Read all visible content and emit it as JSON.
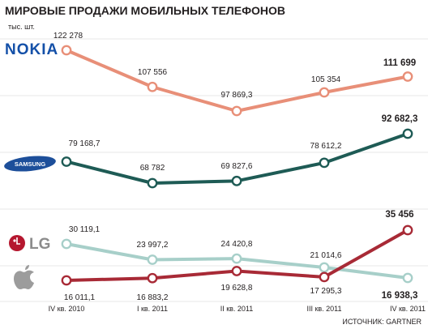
{
  "title": "МИРОВЫЕ ПРОДАЖИ МОБИЛЬНЫХ ТЕЛЕФОНОВ",
  "unit": "тыс. шт.",
  "source": "ИСТОЧНИК: GARTNER",
  "logos": {
    "nokia": "NOKIA",
    "samsung": "SAMSUNG",
    "lg": "LG"
  },
  "chart_data": {
    "type": "line",
    "categories": [
      "IV кв. 2010",
      "I кв. 2011",
      "II кв. 2011",
      "III кв. 2011",
      "IV кв. 2011"
    ],
    "series": [
      {
        "name": "NOKIA",
        "color": "#e88f78",
        "values": [
          122278,
          107556,
          97869.3,
          105354,
          111699
        ],
        "labels": [
          "122 278",
          "107 556",
          "97 869,3",
          "105 354",
          "111 699"
        ]
      },
      {
        "name": "SAMSUNG",
        "color": "#1e5b55",
        "values": [
          79168.7,
          68782,
          69827.6,
          78612.2,
          92682.3
        ],
        "labels": [
          "79 168,7",
          "68 782",
          "69 827,6",
          "78 612,2",
          "92 682,3"
        ]
      },
      {
        "name": "LG",
        "color": "#a7cfc9",
        "values": [
          30119.1,
          23997.2,
          24420.8,
          21014.6,
          16938.3
        ],
        "labels": [
          "30 119,1",
          "23 997,2",
          "24 420,8",
          "21 014,6",
          "16 938,3"
        ]
      },
      {
        "name": "Apple",
        "color": "#a82a36",
        "values": [
          16011.1,
          16883.2,
          19628.8,
          17295.3,
          35456
        ],
        "labels": [
          "16 011,1",
          "16 883,2",
          "19 628,8",
          "17 295,3",
          "35 456"
        ]
      }
    ],
    "grid": true,
    "legend": "left (brand logos)"
  }
}
